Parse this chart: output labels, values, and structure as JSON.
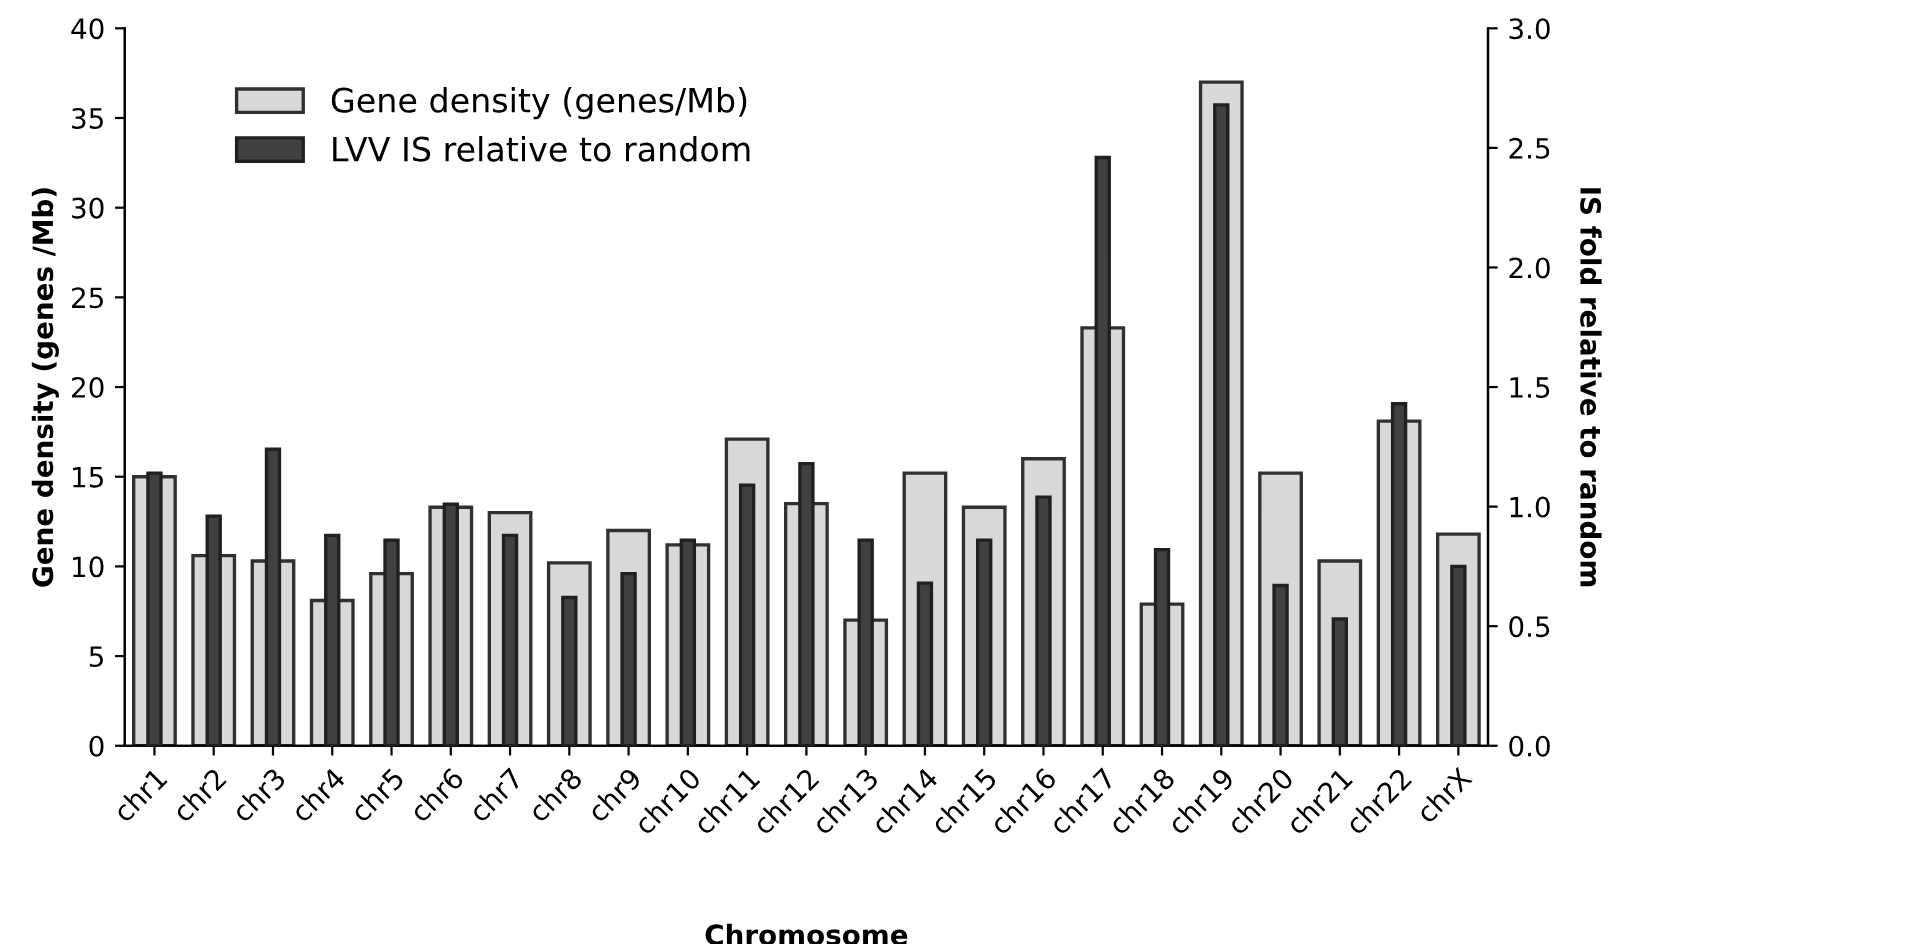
{
  "chart_data": {
    "type": "bar",
    "xlabel": "Chromosome",
    "ylabel": "Gene density (genes /Mb)",
    "y2label": "IS fold relative to random",
    "categories": [
      "chr1",
      "chr2",
      "chr3",
      "chr4",
      "chr5",
      "chr6",
      "chr7",
      "chr8",
      "chr9",
      "chr10",
      "chr11",
      "chr12",
      "chr13",
      "chr14",
      "chr15",
      "chr16",
      "chr17",
      "chr18",
      "chr19",
      "chr20",
      "chr21",
      "chr22",
      "chrX"
    ],
    "series": [
      {
        "name": "Gene density (genes/Mb)",
        "color": "#d9d9d9",
        "values": [
          15.0,
          10.6,
          10.3,
          8.1,
          9.6,
          13.3,
          13.0,
          10.2,
          12.0,
          11.2,
          17.1,
          13.5,
          7.0,
          15.2,
          13.3,
          16.0,
          23.3,
          7.9,
          37.0,
          15.2,
          10.3,
          18.1,
          11.8
        ]
      },
      {
        "name": "LVV IS relative to random",
        "color": "#404040",
        "axis": "y2",
        "values": [
          1.14,
          0.96,
          1.24,
          0.88,
          0.86,
          1.01,
          0.88,
          0.62,
          0.72,
          0.86,
          1.09,
          1.18,
          0.86,
          0.68,
          0.86,
          1.04,
          2.46,
          0.82,
          2.68,
          0.67,
          0.53,
          1.43,
          0.75
        ]
      }
    ],
    "ylim": [
      0,
      40
    ],
    "yticks": [
      0,
      5,
      10,
      15,
      20,
      25,
      30,
      35,
      40
    ],
    "y2lim": [
      0,
      3.0
    ],
    "y2ticks": [
      {
        "value": 0,
        "label": "0.0"
      },
      {
        "value": 0.5,
        "label": "0.5"
      },
      {
        "value": 1.0,
        "label": "1.0"
      },
      {
        "value": 1.5,
        "label": "1.5"
      },
      {
        "value": 2.0,
        "label": "2.0"
      },
      {
        "value": 2.5,
        "label": "2.5"
      },
      {
        "value": 3.0,
        "label": "3.0"
      }
    ],
    "grid": false,
    "legend": "top left"
  }
}
